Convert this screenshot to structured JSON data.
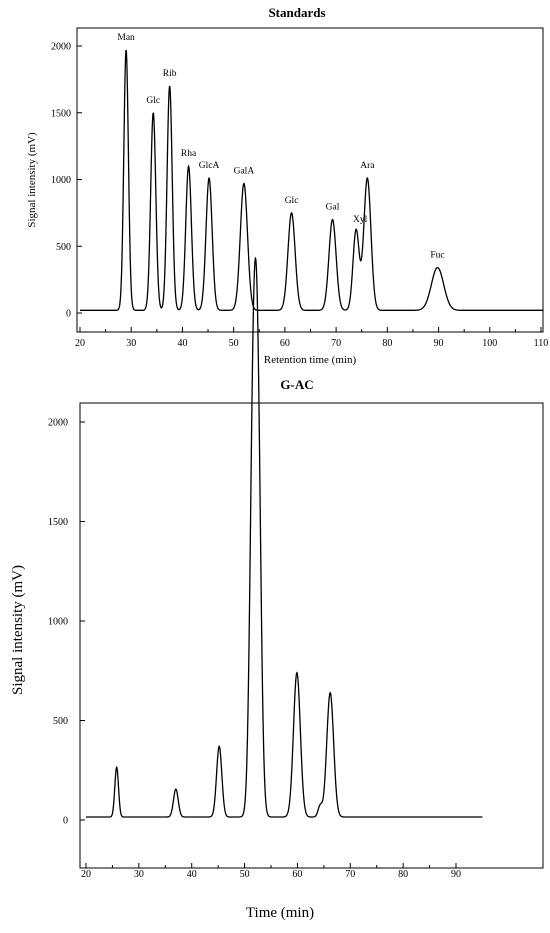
{
  "chart_data": [
    {
      "type": "line",
      "title": "Standards",
      "xlabel": "Retention time (min)",
      "ylabel": "Signal intensity (mV)",
      "xlim": [
        20,
        112
      ],
      "ylim": [
        -60,
        2100
      ],
      "xticks": [
        20,
        30,
        40,
        50,
        60,
        70,
        80,
        90,
        100,
        110
      ],
      "yticks": [
        0,
        500,
        1000,
        1500,
        2000
      ],
      "baseline": 20,
      "peaks": [
        {
          "label": "Man",
          "x": 29.0,
          "y": 1970,
          "width": 0.45
        },
        {
          "label": "Glc",
          "x": 34.3,
          "y": 1500,
          "width": 0.5
        },
        {
          "label": "Rib",
          "x": 37.5,
          "y": 1700,
          "width": 0.5
        },
        {
          "label": "Rha",
          "x": 41.2,
          "y": 1100,
          "width": 0.55
        },
        {
          "label": "GlcA",
          "x": 45.2,
          "y": 1010,
          "width": 0.6
        },
        {
          "label": "GalA",
          "x": 52.0,
          "y": 970,
          "width": 0.7
        },
        {
          "label": "Glc",
          "x": 61.3,
          "y": 750,
          "width": 0.7
        },
        {
          "label": "Gal",
          "x": 69.3,
          "y": 700,
          "width": 0.7
        },
        {
          "label": "Xyl",
          "x": 73.9,
          "y": 620,
          "width": 0.6
        },
        {
          "label": "Ara",
          "x": 76.1,
          "y": 1010,
          "width": 0.7
        },
        {
          "label": "Fuc",
          "x": 89.8,
          "y": 340,
          "width": 1.2
        }
      ]
    },
    {
      "type": "line",
      "title": "G-AC",
      "xlabel": "Time (min)",
      "ylabel": "Signal intensity (mV)",
      "xlim": [
        20,
        95
      ],
      "ylim": [
        -50,
        2100
      ],
      "xticks": [
        20,
        30,
        40,
        50,
        60,
        70,
        80,
        90
      ],
      "yticks": [
        0,
        500,
        1000,
        1500,
        2000
      ],
      "baseline": 15,
      "peaks": [
        {
          "x": 25.8,
          "y": 265,
          "width": 0.35
        },
        {
          "x": 37.0,
          "y": 155,
          "width": 0.45
        },
        {
          "x": 45.2,
          "y": 370,
          "width": 0.5
        },
        {
          "x": 51.6,
          "y": 1850,
          "width": 0.6
        },
        {
          "x": 52.5,
          "y": 1900,
          "width": 0.6
        },
        {
          "x": 59.9,
          "y": 740,
          "width": 0.65
        },
        {
          "x": 64.3,
          "y": 70,
          "width": 0.4
        },
        {
          "x": 66.2,
          "y": 640,
          "width": 0.65
        }
      ]
    }
  ]
}
